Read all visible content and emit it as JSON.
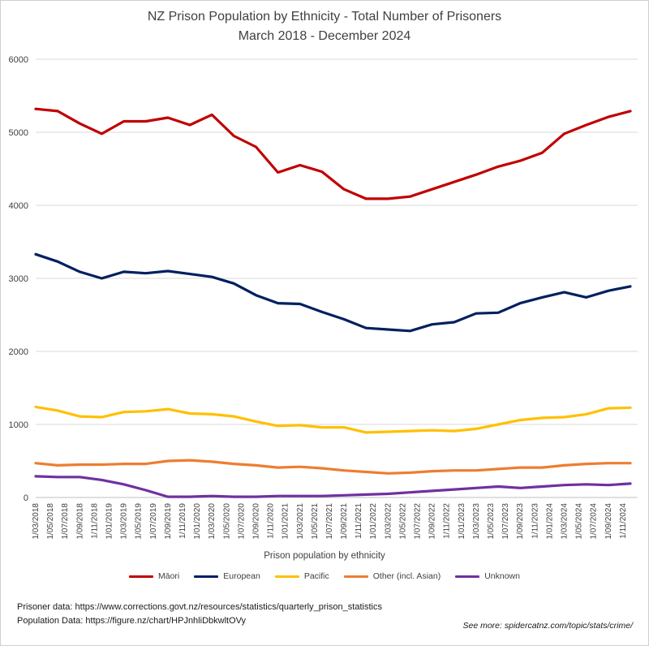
{
  "title": "NZ Prison Population by Ethnicity - Total Number of Prisoners",
  "subtitle": "March 2018 - December 2024",
  "footer": {
    "source_prisoner": "Prisoner data: https://www.corrections.govt.nz/resources/statistics/quarterly_prison_statistics",
    "source_population": "Population Data: https://figure.nz/chart/HPJnhliDbkwltOVy",
    "see_more": "See more: spidercatnz.com/topic/stats/crime/"
  },
  "chart_data": {
    "type": "line",
    "title": "NZ Prison Population by Ethnicity - Total Number of Prisoners",
    "subtitle": "March 2018 - December 2024",
    "xlabel": "Prison population by ethnicity",
    "ylabel": "",
    "ylim": [
      0,
      6000
    ],
    "yticks": [
      0,
      1000,
      2000,
      3000,
      4000,
      5000,
      6000
    ],
    "grid": "horizontal",
    "legend_position": "bottom",
    "x": [
      "1/03/2018",
      "1/06/2018",
      "1/09/2018",
      "1/12/2018",
      "1/03/2019",
      "1/06/2019",
      "1/09/2019",
      "1/12/2019",
      "1/03/2020",
      "1/06/2020",
      "1/09/2020",
      "1/12/2020",
      "1/03/2021",
      "1/06/2021",
      "1/09/2021",
      "1/12/2021",
      "1/03/2022",
      "1/06/2022",
      "1/09/2022",
      "1/12/2022",
      "1/03/2023",
      "1/06/2023",
      "1/09/2023",
      "1/12/2023",
      "1/03/2024",
      "1/06/2024",
      "1/09/2024",
      "1/12/2024"
    ],
    "x_tick_labels": [
      "1/03/2018",
      "1/05/2018",
      "1/07/2018",
      "1/09/2018",
      "1/11/2018",
      "1/01/2019",
      "1/03/2019",
      "1/05/2019",
      "1/07/2019",
      "1/09/2019",
      "1/11/2019",
      "1/01/2020",
      "1/03/2020",
      "1/05/2020",
      "1/07/2020",
      "1/09/2020",
      "1/11/2020",
      "1/01/2021",
      "1/03/2021",
      "1/05/2021",
      "1/07/2021",
      "1/09/2021",
      "1/11/2021",
      "1/01/2022",
      "1/03/2022",
      "1/05/2022",
      "1/07/2022",
      "1/09/2022",
      "1/11/2022",
      "1/01/2023",
      "1/03/2023",
      "1/05/2023",
      "1/07/2023",
      "1/09/2023",
      "1/11/2023",
      "1/01/2024",
      "1/03/2024",
      "1/05/2024",
      "1/07/2024",
      "1/09/2024",
      "1/11/2024"
    ],
    "series": [
      {
        "name": "Māori",
        "color": "#c00000",
        "values": [
          5320,
          5290,
          5120,
          4980,
          5150,
          5150,
          5200,
          5100,
          5240,
          4950,
          4800,
          4450,
          4550,
          4460,
          4220,
          4090,
          4090,
          4120,
          4220,
          4320,
          4420,
          4530,
          4610,
          4720,
          4980,
          5100,
          5210,
          5290
        ]
      },
      {
        "name": "European",
        "color": "#002060",
        "values": [
          3330,
          3230,
          3090,
          3000,
          3090,
          3070,
          3100,
          3060,
          3020,
          2930,
          2770,
          2660,
          2650,
          2540,
          2440,
          2320,
          2300,
          2280,
          2370,
          2400,
          2520,
          2530,
          2660,
          2740,
          2810,
          2740,
          2830,
          2890
        ]
      },
      {
        "name": "Pacific",
        "color": "#ffc000",
        "values": [
          1240,
          1190,
          1110,
          1100,
          1170,
          1180,
          1210,
          1150,
          1140,
          1110,
          1040,
          980,
          990,
          960,
          960,
          890,
          900,
          910,
          920,
          910,
          940,
          1000,
          1060,
          1090,
          1100,
          1140,
          1220,
          1230
        ]
      },
      {
        "name": "Other (incl. Asian)",
        "color": "#ed7d31",
        "values": [
          470,
          440,
          450,
          450,
          460,
          460,
          500,
          510,
          490,
          460,
          440,
          410,
          420,
          400,
          370,
          350,
          330,
          340,
          360,
          370,
          370,
          390,
          410,
          410,
          440,
          460,
          470,
          470
        ]
      },
      {
        "name": "Unknown",
        "color": "#7030a0",
        "values": [
          290,
          280,
          280,
          240,
          180,
          100,
          10,
          10,
          20,
          10,
          10,
          20,
          20,
          20,
          30,
          40,
          50,
          70,
          90,
          110,
          130,
          150,
          130,
          150,
          170,
          180,
          170,
          190
        ]
      }
    ]
  }
}
